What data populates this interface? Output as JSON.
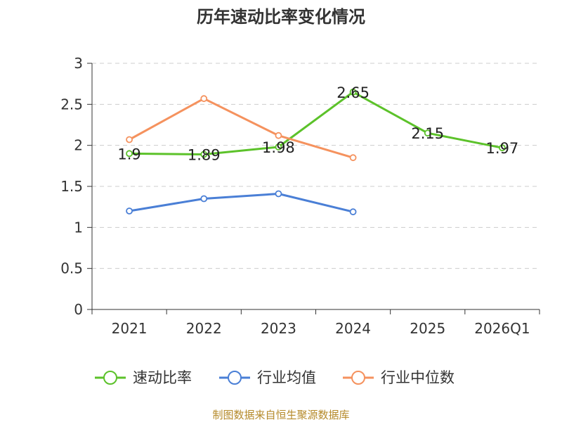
{
  "chart_data": {
    "type": "line",
    "title": "历年速动比率变化情况",
    "categories": [
      "2021",
      "2022",
      "2023",
      "2024",
      "2025",
      "2026Q1"
    ],
    "ylim": [
      0,
      3
    ],
    "yticks": [
      "0",
      "0.5",
      "1",
      "1.5",
      "2",
      "2.5",
      "3"
    ],
    "grid": true,
    "legend_position": "bottom",
    "series": [
      {
        "name": "速动比率",
        "color": "#5cc22a",
        "values": [
          1.9,
          1.89,
          1.98,
          2.65,
          2.15,
          1.97
        ],
        "labels": [
          "1.9",
          "1.89",
          "1.98",
          "2.65",
          "2.15",
          "1.97"
        ]
      },
      {
        "name": "行业均值",
        "color": "#4a7fd6",
        "values": [
          1.2,
          1.35,
          1.41,
          1.19,
          null,
          null
        ]
      },
      {
        "name": "行业中位数",
        "color": "#f5925e",
        "values": [
          2.07,
          2.57,
          2.12,
          1.85,
          null,
          null
        ]
      }
    ]
  },
  "source": "制图数据来自恒生聚源数据库"
}
